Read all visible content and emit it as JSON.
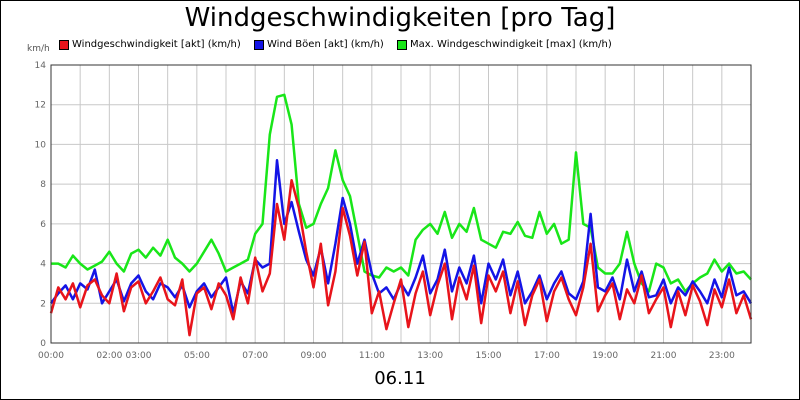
{
  "chart_data": {
    "type": "line",
    "title": "Windgeschwindigkeiten [pro Tag]",
    "ylabel": "km/h",
    "xlabel": "06.11",
    "ylim": [
      0,
      14
    ],
    "yticks": [
      "0",
      "2",
      "4",
      "6",
      "8",
      "10",
      "12",
      "14"
    ],
    "xlim": [
      0,
      24
    ],
    "xticks": [
      "00:00",
      "02:00",
      "03:00",
      "05:00",
      "07:00",
      "09:00",
      "11:00",
      "13:00",
      "15:00",
      "17:00",
      "19:00",
      "21:00",
      "23:00"
    ],
    "xtick_hours": [
      0,
      2,
      3,
      5,
      7,
      9,
      11,
      13,
      15,
      17,
      19,
      21,
      23
    ],
    "grid": true,
    "legend_position": "top",
    "series": [
      {
        "name": "Windgeschwindigkeit [akt] (km/h)",
        "color": "#e8141b",
        "x": [
          0,
          0.25,
          0.5,
          0.75,
          1,
          1.25,
          1.5,
          1.75,
          2,
          2.25,
          2.5,
          2.75,
          3,
          3.25,
          3.5,
          3.75,
          4,
          4.25,
          4.5,
          4.75,
          5,
          5.25,
          5.5,
          5.75,
          6,
          6.25,
          6.5,
          6.75,
          7,
          7.25,
          7.5,
          7.75,
          8,
          8.25,
          8.5,
          8.75,
          9,
          9.25,
          9.5,
          9.75,
          10,
          10.25,
          10.5,
          10.75,
          11,
          11.25,
          11.5,
          11.75,
          12,
          12.25,
          12.5,
          12.75,
          13,
          13.25,
          13.5,
          13.75,
          14,
          14.25,
          14.5,
          14.75,
          15,
          15.25,
          15.5,
          15.75,
          16,
          16.25,
          16.5,
          16.75,
          17,
          17.25,
          17.5,
          17.75,
          18,
          18.25,
          18.5,
          18.75,
          19,
          19.25,
          19.5,
          19.75,
          20,
          20.25,
          20.5,
          20.75,
          21,
          21.25,
          21.5,
          21.75,
          22,
          22.25,
          22.5,
          22.75,
          23,
          23.25,
          23.5,
          23.75,
          24
        ],
        "values": [
          1.5,
          2.8,
          2.2,
          3.0,
          1.8,
          2.9,
          3.2,
          2.4,
          2.0,
          3.5,
          1.6,
          2.8,
          3.1,
          2.0,
          2.6,
          3.3,
          2.2,
          1.9,
          3.2,
          0.4,
          2.5,
          2.8,
          1.7,
          3.0,
          2.4,
          1.2,
          3.3,
          2.0,
          4.3,
          2.6,
          3.5,
          7.0,
          5.2,
          8.2,
          6.8,
          4.6,
          2.8,
          5.0,
          1.9,
          3.6,
          6.8,
          5.4,
          3.4,
          5.1,
          1.5,
          2.6,
          0.7,
          2.0,
          3.2,
          0.8,
          2.5,
          3.6,
          1.4,
          2.9,
          4.0,
          1.2,
          3.3,
          2.2,
          3.9,
          1.0,
          3.4,
          2.6,
          3.6,
          1.5,
          3.1,
          0.9,
          2.4,
          3.2,
          1.1,
          2.6,
          3.3,
          2.2,
          1.4,
          2.8,
          5.0,
          1.6,
          2.4,
          3.0,
          1.2,
          2.7,
          2.0,
          3.4,
          1.5,
          2.2,
          2.8,
          0.8,
          2.6,
          1.4,
          2.9,
          2.1,
          0.9,
          2.7,
          1.8,
          3.2,
          1.5,
          2.4,
          1.2
        ]
      },
      {
        "name": "Wind Böen [akt] (km/h)",
        "color": "#1414e6",
        "x": [
          0,
          0.25,
          0.5,
          0.75,
          1,
          1.25,
          1.5,
          1.75,
          2,
          2.25,
          2.5,
          2.75,
          3,
          3.25,
          3.5,
          3.75,
          4,
          4.25,
          4.5,
          4.75,
          5,
          5.25,
          5.5,
          5.75,
          6,
          6.25,
          6.5,
          6.75,
          7,
          7.25,
          7.5,
          7.75,
          8,
          8.25,
          8.5,
          8.75,
          9,
          9.25,
          9.5,
          9.75,
          10,
          10.25,
          10.5,
          10.75,
          11,
          11.25,
          11.5,
          11.75,
          12,
          12.25,
          12.5,
          12.75,
          13,
          13.25,
          13.5,
          13.75,
          14,
          14.25,
          14.5,
          14.75,
          15,
          15.25,
          15.5,
          15.75,
          16,
          16.25,
          16.5,
          16.75,
          17,
          17.25,
          17.5,
          17.75,
          18,
          18.25,
          18.5,
          18.75,
          19,
          19.25,
          19.5,
          19.75,
          20,
          20.25,
          20.5,
          20.75,
          21,
          21.25,
          21.5,
          21.75,
          22,
          22.25,
          22.5,
          22.75,
          23,
          23.25,
          23.5,
          23.75,
          24
        ],
        "values": [
          2.0,
          2.5,
          2.9,
          2.2,
          3.0,
          2.7,
          3.7,
          2.0,
          2.6,
          3.2,
          2.1,
          3.0,
          3.4,
          2.6,
          2.2,
          3.0,
          2.8,
          2.3,
          2.9,
          1.8,
          2.6,
          3.0,
          2.3,
          2.8,
          3.3,
          1.5,
          3.1,
          2.5,
          4.2,
          3.8,
          4.0,
          9.2,
          6.0,
          7.1,
          5.6,
          4.2,
          3.4,
          4.8,
          3.0,
          5.0,
          7.3,
          6.0,
          4.0,
          5.2,
          3.5,
          2.5,
          2.8,
          2.2,
          3.0,
          2.4,
          3.3,
          4.4,
          2.5,
          3.2,
          4.7,
          2.6,
          3.8,
          3.0,
          4.4,
          2.0,
          4.0,
          3.2,
          4.2,
          2.4,
          3.6,
          2.0,
          2.6,
          3.4,
          2.2,
          3.0,
          3.6,
          2.5,
          2.2,
          3.1,
          6.5,
          2.8,
          2.6,
          3.3,
          2.2,
          4.2,
          2.6,
          3.6,
          2.3,
          2.4,
          3.2,
          2.0,
          2.8,
          2.4,
          3.1,
          2.6,
          2.0,
          3.2,
          2.3,
          3.8,
          2.4,
          2.6,
          2.0
        ]
      },
      {
        "name": "Max. Windgeschwindigkeit [max] (km/h)",
        "color": "#19e619",
        "x": [
          0,
          0.25,
          0.5,
          0.75,
          1,
          1.25,
          1.5,
          1.75,
          2,
          2.25,
          2.5,
          2.75,
          3,
          3.25,
          3.5,
          3.75,
          4,
          4.25,
          4.5,
          4.75,
          5,
          5.25,
          5.5,
          5.75,
          6,
          6.25,
          6.5,
          6.75,
          7,
          7.25,
          7.5,
          7.75,
          8,
          8.25,
          8.5,
          8.75,
          9,
          9.25,
          9.5,
          9.75,
          10,
          10.25,
          10.5,
          10.75,
          11,
          11.25,
          11.5,
          11.75,
          12,
          12.25,
          12.5,
          12.75,
          13,
          13.25,
          13.5,
          13.75,
          14,
          14.25,
          14.5,
          14.75,
          15,
          15.25,
          15.5,
          15.75,
          16,
          16.25,
          16.5,
          16.75,
          17,
          17.25,
          17.5,
          17.75,
          18,
          18.25,
          18.5,
          18.75,
          19,
          19.25,
          19.5,
          19.75,
          20,
          20.25,
          20.5,
          20.75,
          21,
          21.25,
          21.5,
          21.75,
          22,
          22.25,
          22.5,
          22.75,
          23,
          23.25,
          23.5,
          23.75,
          24
        ],
        "values": [
          4.0,
          4.0,
          3.8,
          4.4,
          4.0,
          3.7,
          3.9,
          4.1,
          4.6,
          4.0,
          3.6,
          4.5,
          4.7,
          4.3,
          4.8,
          4.4,
          5.2,
          4.3,
          4.0,
          3.6,
          4.0,
          4.6,
          5.2,
          4.5,
          3.6,
          3.8,
          4.0,
          4.2,
          5.5,
          6.0,
          10.5,
          12.4,
          12.5,
          11.0,
          7.0,
          5.8,
          6.0,
          7.0,
          7.8,
          9.7,
          8.2,
          7.4,
          5.5,
          3.6,
          3.4,
          3.3,
          3.8,
          3.6,
          3.8,
          3.4,
          5.2,
          5.7,
          6.0,
          5.5,
          6.6,
          5.3,
          6.0,
          5.6,
          6.8,
          5.2,
          5.0,
          4.8,
          5.6,
          5.5,
          6.1,
          5.4,
          5.3,
          6.6,
          5.5,
          6.0,
          5.0,
          5.2,
          9.6,
          6.0,
          5.8,
          3.8,
          3.5,
          3.5,
          4.0,
          5.6,
          4.0,
          3.0,
          2.6,
          4.0,
          3.8,
          3.0,
          3.2,
          2.6,
          3.0,
          3.3,
          3.5,
          4.2,
          3.6,
          4.0,
          3.5,
          3.6,
          3.2
        ]
      }
    ]
  }
}
